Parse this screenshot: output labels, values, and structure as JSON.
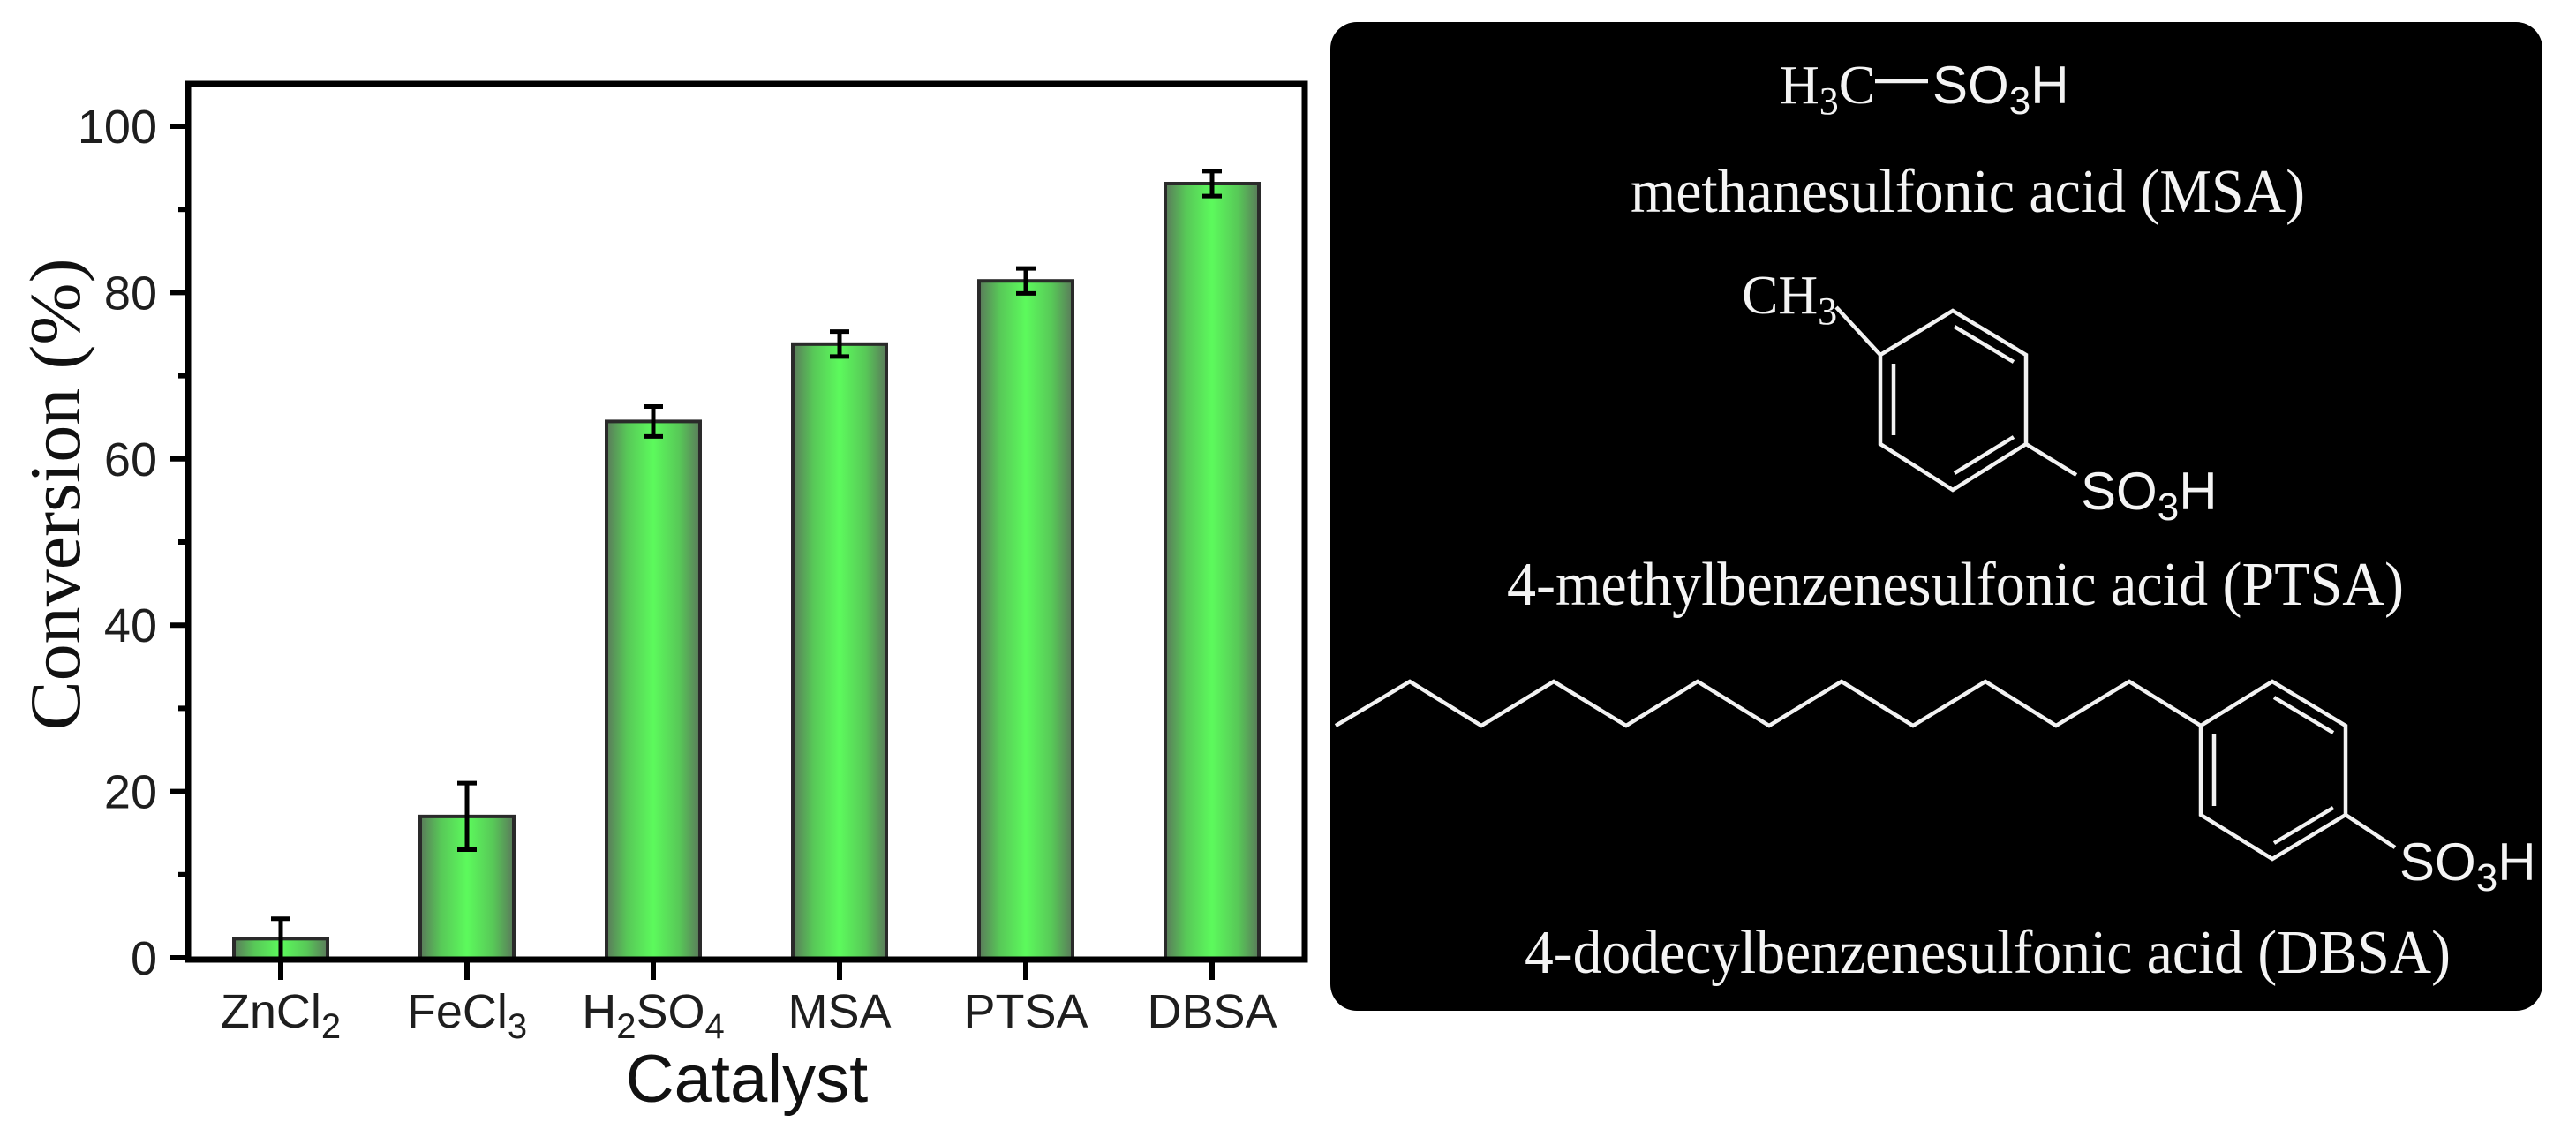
{
  "figure": {
    "left_panel": "bar-chart",
    "right_panel": "chemical-structures"
  },
  "chart_data": {
    "type": "bar",
    "title": "",
    "xlabel": "Catalyst",
    "ylabel": "Conversion  (%)",
    "categories": [
      "ZnCl2",
      "FeCl3",
      "H2SO4",
      "MSA",
      "PTSA",
      "DBSA"
    ],
    "category_labels": [
      {
        "main": "ZnCl",
        "sub": "2",
        "tail": ""
      },
      {
        "main": "FeCl",
        "sub": "3",
        "tail": ""
      },
      {
        "main": "H",
        "sub": "2",
        "tail": "SO",
        "sub2": "4"
      },
      {
        "main": "MSA",
        "sub": "",
        "tail": ""
      },
      {
        "main": "PTSA",
        "sub": "",
        "tail": ""
      },
      {
        "main": "DBSA",
        "sub": "",
        "tail": ""
      }
    ],
    "values": [
      2.3,
      17.0,
      64.5,
      73.8,
      81.4,
      93.1
    ],
    "errors": [
      2.4,
      4.0,
      1.8,
      1.5,
      1.5,
      1.5
    ],
    "ylim": [
      0,
      105
    ],
    "yticks": [
      0,
      20,
      40,
      60,
      80,
      100
    ],
    "yticks_minor": [
      10,
      30,
      50,
      70,
      90
    ],
    "grid": false,
    "legend": null,
    "colors": {
      "bar_center": "#5cfa5c",
      "bar_edge": "#5a7a5a",
      "bar_border": "#2a2a2a",
      "axis": "#000000"
    }
  },
  "structures_panel": {
    "background": "#000000",
    "foreground": "#f4f4f4",
    "compounds": [
      {
        "id": "msa",
        "formula_left": "H",
        "formula_left_sub": "3",
        "formula_left_tail": "C",
        "formula_right": "SO",
        "formula_right_sub": "3",
        "formula_right_tail": "H",
        "label": "methanesulfonic acid (MSA)"
      },
      {
        "id": "ptsa",
        "substituent_top": "CH",
        "substituent_top_sub": "3",
        "substituent_bottom": "SO",
        "substituent_bottom_sub": "3",
        "substituent_bottom_tail": "H",
        "label": "4-methylbenzenesulfonic acid (PTSA)"
      },
      {
        "id": "dbsa",
        "chain": "dodecyl (C12)",
        "substituent_bottom": "SO",
        "substituent_bottom_sub": "3",
        "substituent_bottom_tail": "H",
        "label": "4-dodecylbenzenesulfonic acid (DBSA)"
      }
    ]
  }
}
